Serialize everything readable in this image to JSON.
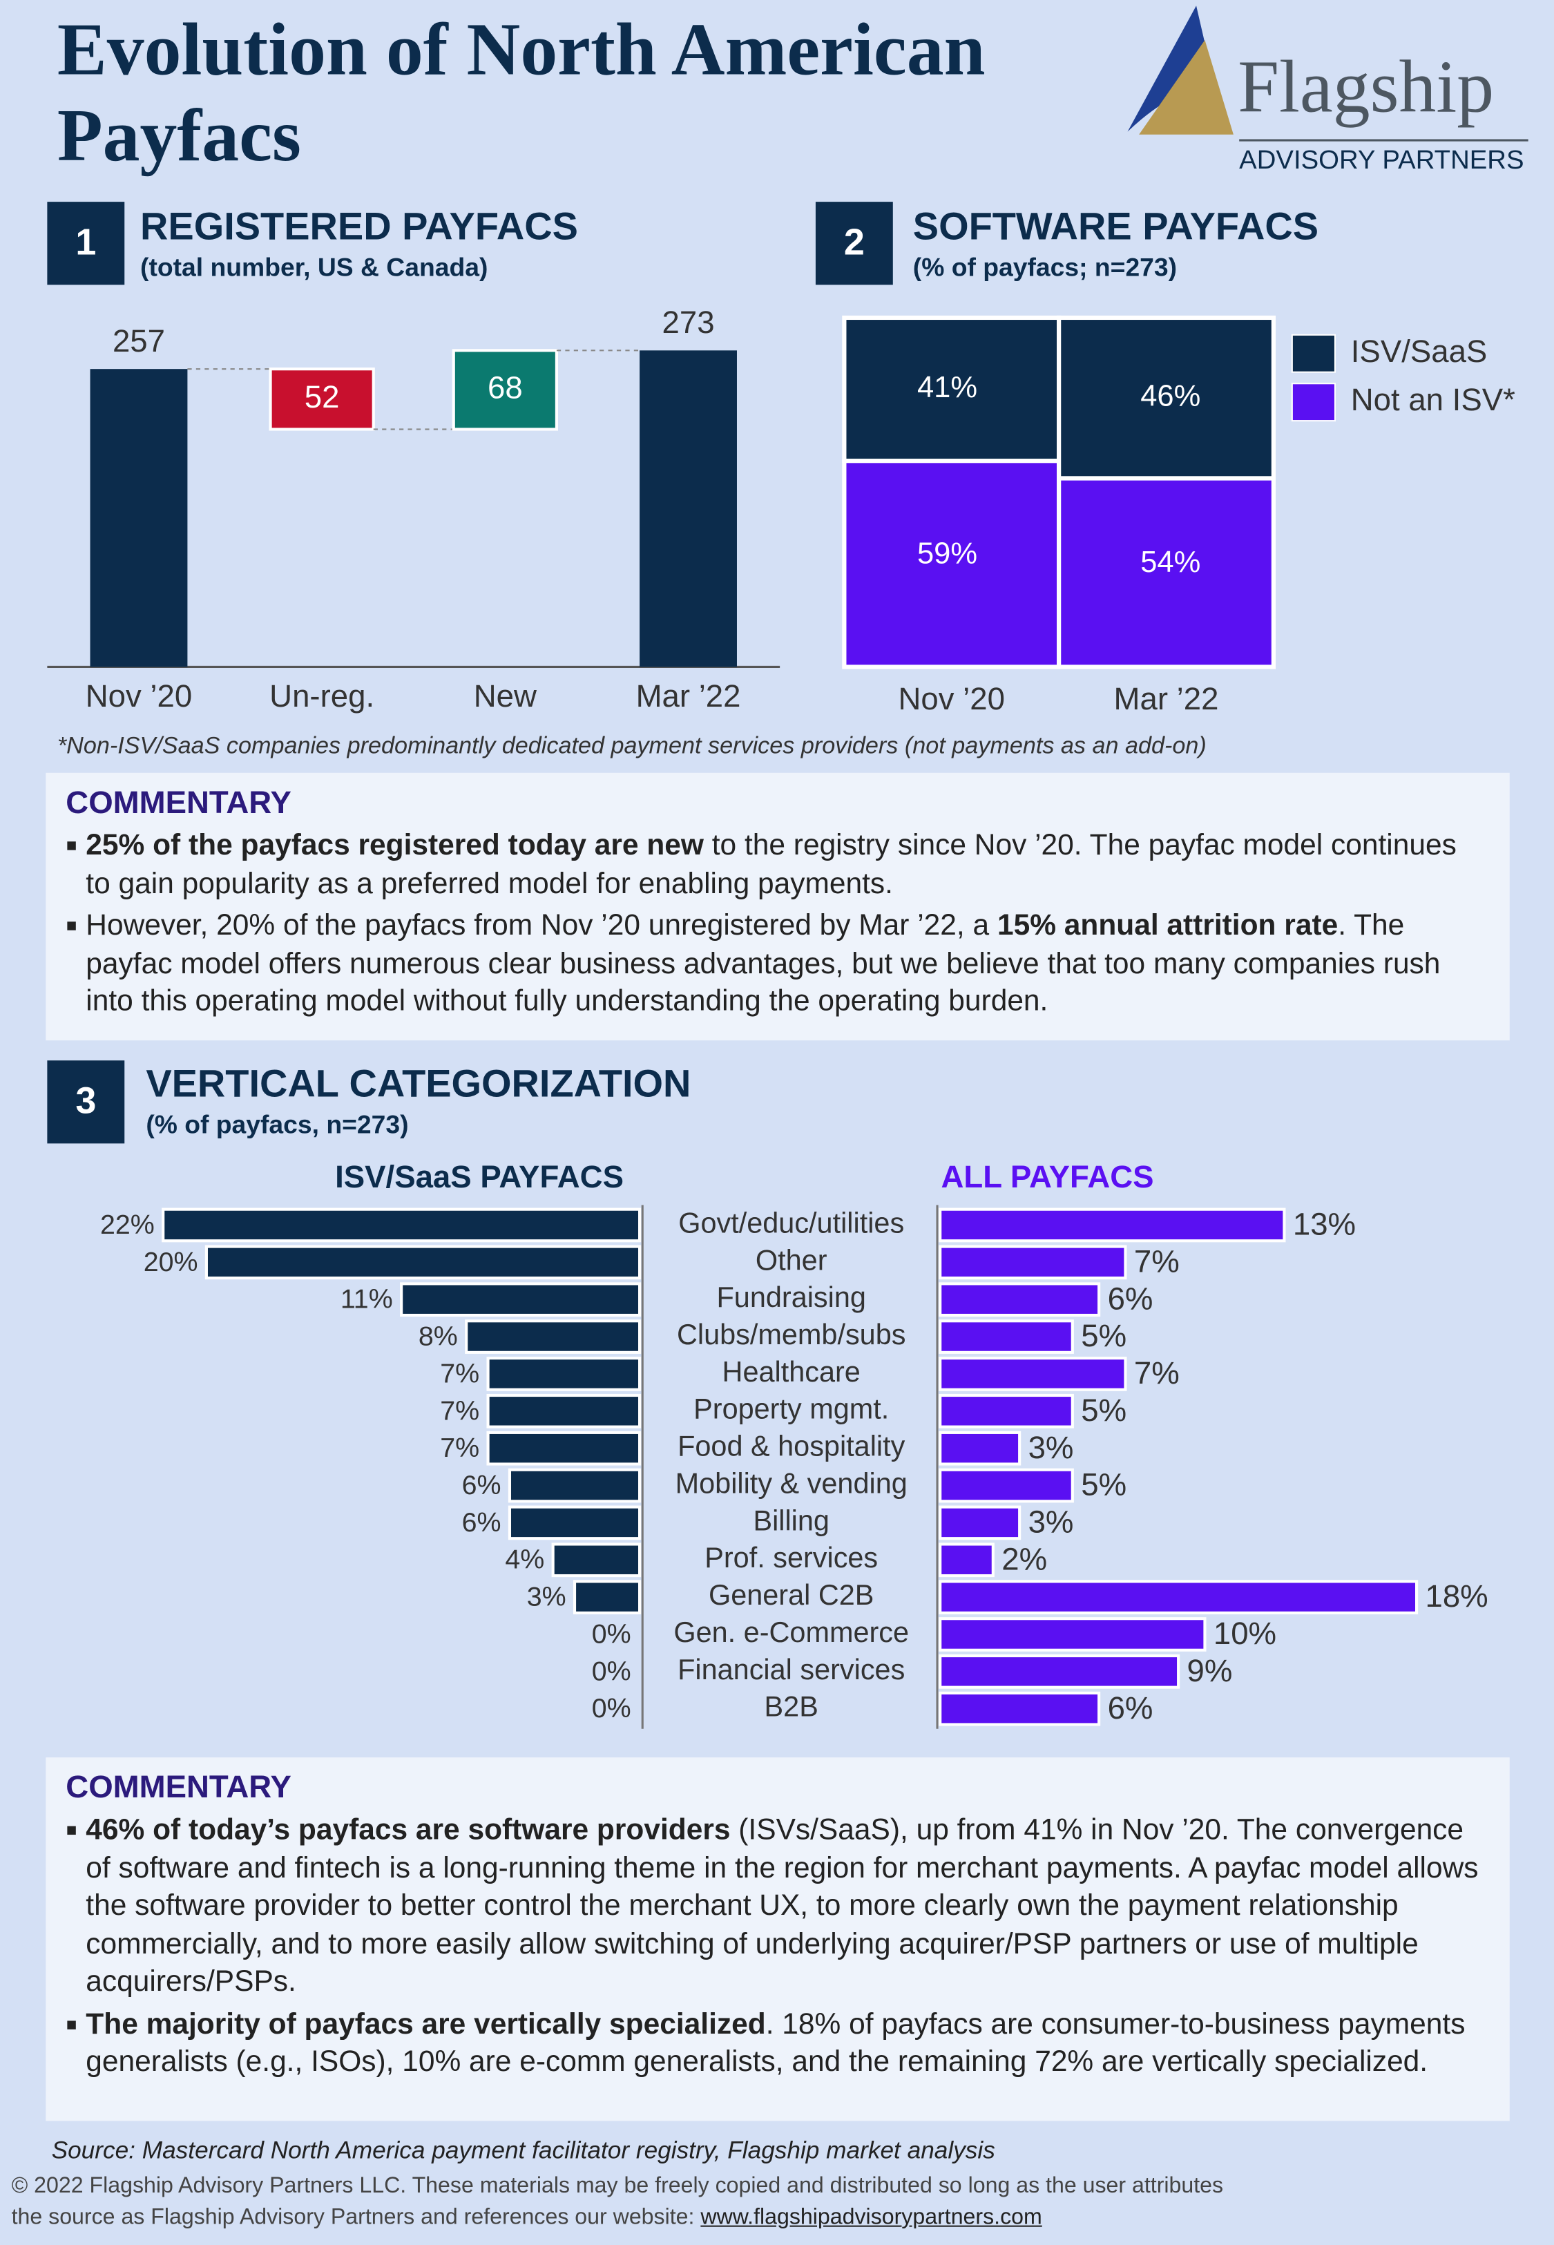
{
  "header": {
    "title": "Evolution of North American Payfacs",
    "logo_name": "Flagship",
    "logo_tagline": "ADVISORY PARTNERS"
  },
  "chart_data": [
    {
      "type": "waterfall",
      "number": "1",
      "title": "REGISTERED PAYFACS",
      "subtitle": "(total number, US & Canada)",
      "categories": [
        "Nov ’20",
        "Un-reg.",
        "New",
        "Mar ’22"
      ],
      "values": [
        257,
        52,
        68,
        273
      ],
      "measures": [
        "total",
        "decrease",
        "increase",
        "total"
      ],
      "colors": {
        "total": "#0c2c4c",
        "decrease": "#c8102e",
        "increase": "#0b7a6f"
      },
      "ylim": [
        0,
        300
      ]
    },
    {
      "type": "stacked_bar",
      "number": "2",
      "title": "SOFTWARE PAYFACS",
      "subtitle": "(% of payfacs; n=273)",
      "categories": [
        "Nov ’20",
        "Mar ’22"
      ],
      "series": [
        {
          "name": "ISV/SaaS",
          "color": "#0c2c4c",
          "values": [
            41,
            46
          ],
          "value_labels": [
            "41%",
            "46%"
          ]
        },
        {
          "name": "Not an ISV*",
          "color": "#5a10f2",
          "values": [
            59,
            54
          ],
          "value_labels": [
            "59%",
            "54%"
          ]
        }
      ],
      "ylim": [
        0,
        100
      ],
      "legend": "right"
    },
    {
      "type": "butterfly",
      "number": "3",
      "title": "VERTICAL CATEGORIZATION",
      "subtitle": "(% of payfacs, n=273)",
      "categories": [
        "Govt/educ/utilities",
        "Other",
        "Fundraising",
        "Clubs/memb/subs",
        "Healthcare",
        "Property mgmt.",
        "Food & hospitality",
        "Mobility & vending",
        "Billing",
        "Prof. services",
        "General C2B",
        "Gen. e-Commerce",
        "Financial services",
        "B2B"
      ],
      "series": [
        {
          "name": "ISV/SaaS PAYFACS",
          "color": "#0c2c4c",
          "xlim": [
            0,
            22
          ],
          "values": [
            22,
            20,
            11,
            8,
            7,
            7,
            7,
            6,
            6,
            4,
            3,
            0,
            0,
            0
          ],
          "value_labels": [
            "22%",
            "20%",
            "11%",
            "8%",
            "7%",
            "7%",
            "7%",
            "6%",
            "6%",
            "4%",
            "3%",
            "0%",
            "0%",
            "0%"
          ]
        },
        {
          "name": "ALL PAYFACS",
          "color": "#5a10f2",
          "xlim": [
            0,
            18
          ],
          "values": [
            13,
            7,
            6,
            5,
            7,
            5,
            3,
            5,
            3,
            2,
            18,
            10,
            9,
            6
          ],
          "value_labels": [
            "13%",
            "7%",
            "6%",
            "5%",
            "7%",
            "5%",
            "3%",
            "5%",
            "3%",
            "2%",
            "18%",
            "10%",
            "9%",
            "6%"
          ]
        }
      ]
    }
  ],
  "footnote": "*Non-ISV/SaaS companies predominantly dedicated payment services providers (not payments as an add-on)",
  "commentary": [
    {
      "title": "COMMENTARY",
      "bullets": [
        [
          {
            "text": "25% of the payfacs registered today are new",
            "bold": true
          },
          {
            "text": " to the registry since Nov ’20. The payfac model continues to gain popularity as a preferred model for enabling payments."
          }
        ],
        [
          {
            "text": "However, 20% of the payfacs from Nov ’20 unregistered by Mar ’22, a "
          },
          {
            "text": "15% annual attrition rate",
            "bold": true
          },
          {
            "text": ". The payfac model offers numerous clear business advantages, but we believe that too many companies rush into this operating model without fully understanding the operating burden."
          }
        ]
      ]
    },
    {
      "title": "COMMENTARY",
      "bullets": [
        [
          {
            "text": "46% of today’s payfacs are software providers",
            "bold": true
          },
          {
            "text": " (ISVs/SaaS), up from 41% in Nov ’20. The convergence of software and fintech is a long-running theme in the region for merchant payments. A payfac model allows the software provider to better control the merchant UX, to more clearly own the payment relationship commercially, and to more easily allow switching of underlying acquirer/PSP partners or use of multiple acquirers/PSPs."
          }
        ],
        [
          {
            "text": "The majority of payfacs are vertically specialized",
            "bold": true
          },
          {
            "text": ". 18% of payfacs are consumer-to-business payments generalists (e.g., ISOs), 10% are e-comm generalists, and the remaining 72% are vertically specialized."
          }
        ]
      ]
    }
  ],
  "source": "Source: Mastercard North America payment facilitator registry, Flagship market analysis",
  "footer": {
    "text": "© 2022 Flagship Advisory Partners LLC. These materials may be freely copied and distributed so long as the user attributes the source as Flagship Advisory Partners and references our website: ",
    "link": "www.flagshipadvisorypartners.com"
  }
}
